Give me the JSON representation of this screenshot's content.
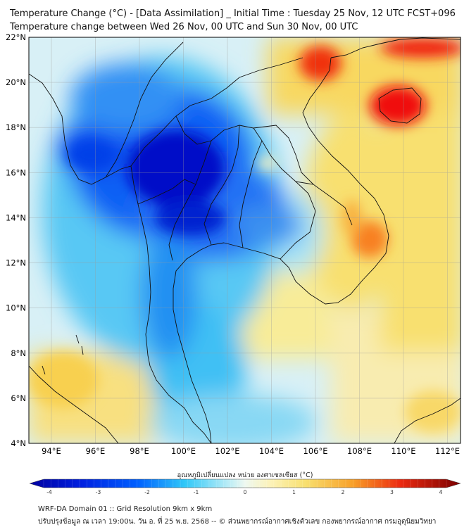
{
  "title": {
    "line1": "Temperature Change (°C) - [Data Assimilation] _ Initial Time : Tuesday 25 Nov, 12 UTC FCST+096",
    "line2": "Temperature change between Wed 26 Nov, 00 UTC and Sun 30 Nov, 00 UTC"
  },
  "map": {
    "lat_labels": [
      "22°N",
      "20°N",
      "18°N",
      "16°N",
      "14°N",
      "12°N",
      "10°N",
      "8°N",
      "6°N",
      "4°N"
    ],
    "lon_labels": [
      "94°E",
      "96°E",
      "98°E",
      "100°E",
      "102°E",
      "104°E",
      "106°E",
      "108°E",
      "110°E",
      "112°E"
    ]
  },
  "colorbar": {
    "label": "อุณหภูมิเปลี่ยนแปลง หน่วย องศาเซลเซียส (°C)",
    "ticks": [
      "-4",
      "-3",
      "-2",
      "-1",
      "0",
      "1",
      "2",
      "3",
      "4"
    ],
    "colors": {
      "dark_blue": "#0000a0",
      "blue": "#0030ff",
      "cyan": "#30c8f8",
      "pale": "#e6f6f4",
      "yellow": "#f8e070",
      "orange": "#f89020",
      "red": "#e81010",
      "dark_red": "#7a0000"
    }
  },
  "footer": {
    "line1": "WRF-DA Domain 01 :: Grid Resolution 9km x 9km",
    "line2": "ปรับปรุงข้อมูล ณ เวลา 19:00น. วัน อ. ที่ 25 พ.ย. 2568 -- © ส่วนพยากรณ์อากาศเชิงตัวเลข กองพยากรณ์อากาศ กรมอุตุนิยมวิทยา"
  }
}
